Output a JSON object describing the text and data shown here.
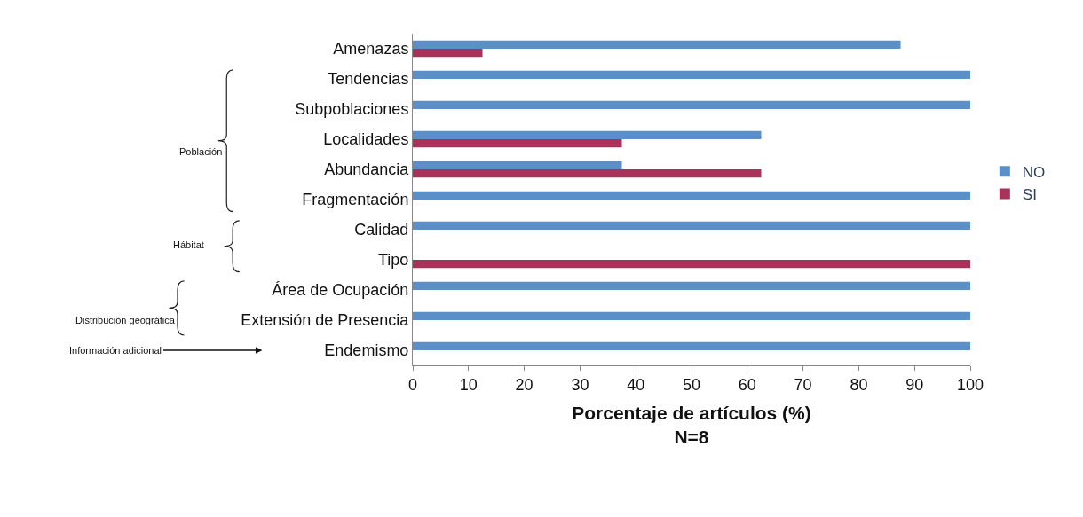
{
  "chart_data": {
    "type": "bar",
    "orientation": "horizontal",
    "xlabel": "Porcentaje de artículos (%)\nN=8",
    "categories": [
      "Amenazas",
      "Tendencias",
      "Subpoblaciones",
      "Localidades",
      "Abundancia",
      "Fragmentación",
      "Calidad",
      "Tipo",
      "Área de Ocupación",
      "Extensión de Presencia",
      "Endemismo"
    ],
    "series": [
      {
        "name": "NO",
        "color": "#5a8fc8",
        "values": [
          87.5,
          100,
          100,
          62.5,
          37.5,
          100,
          100,
          0,
          100,
          100,
          100
        ]
      },
      {
        "name": "SI",
        "color": "#a8325a",
        "values": [
          12.5,
          0,
          0,
          37.5,
          62.5,
          0,
          0,
          100,
          0,
          0,
          0
        ]
      }
    ],
    "xlim": [
      0,
      100
    ],
    "xticks": [
      0,
      10,
      20,
      30,
      40,
      50,
      60,
      70,
      80,
      90,
      100
    ],
    "legend": "right",
    "annotations": [
      "Población",
      "Hábitat",
      "Distribución geográfica",
      "Información adicional"
    ]
  }
}
